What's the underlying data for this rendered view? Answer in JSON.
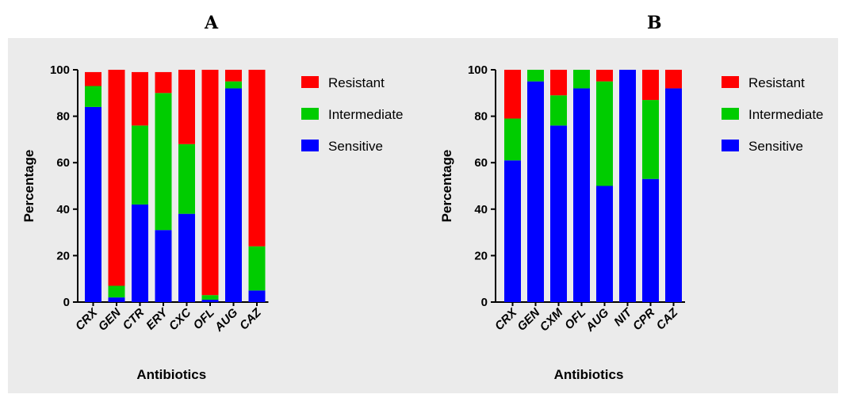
{
  "panel_labels": [
    "A",
    "B"
  ],
  "chart_data": [
    {
      "type": "bar",
      "stacked": true,
      "title": "A",
      "xlabel": "Antibiotics",
      "ylabel": "Percentage",
      "ylim": [
        0,
        100
      ],
      "yticks": [
        0,
        20,
        40,
        60,
        80,
        100
      ],
      "categories": [
        "CRX",
        "GEN",
        "CTR",
        "ERY",
        "CXC",
        "OFL",
        "AUG",
        "CAZ"
      ],
      "series": [
        {
          "name": "Sensitive",
          "color": "#0000ff",
          "values": [
            84,
            2,
            42,
            31,
            38,
            1,
            92,
            5
          ]
        },
        {
          "name": "Intermediate",
          "color": "#00cc00",
          "values": [
            9,
            5,
            34,
            59,
            30,
            2,
            3,
            19
          ]
        },
        {
          "name": "Resistant",
          "color": "#ff0000",
          "values": [
            6,
            93,
            23,
            9,
            32,
            97,
            5,
            76
          ]
        }
      ],
      "legend": [
        "Resistant",
        "Intermediate",
        "Sensitive"
      ],
      "legend_position": "right",
      "grid": false
    },
    {
      "type": "bar",
      "stacked": true,
      "title": "B",
      "xlabel": "Antibiotics",
      "ylabel": "Percentage",
      "ylim": [
        0,
        100
      ],
      "yticks": [
        0,
        20,
        40,
        60,
        80,
        100
      ],
      "categories": [
        "CRX",
        "GEN",
        "CXM",
        "OFL",
        "AUG",
        "NIT",
        "CPR",
        "CAZ"
      ],
      "series": [
        {
          "name": "Sensitive",
          "color": "#0000ff",
          "values": [
            61,
            95,
            76,
            92,
            50,
            100,
            53,
            92
          ]
        },
        {
          "name": "Intermediate",
          "color": "#00cc00",
          "values": [
            18,
            5,
            13,
            8,
            45,
            0,
            34,
            0
          ]
        },
        {
          "name": "Resistant",
          "color": "#ff0000",
          "values": [
            21,
            0,
            11,
            0,
            5,
            0,
            13,
            8
          ]
        }
      ],
      "legend": [
        "Resistant",
        "Intermediate",
        "Sensitive"
      ],
      "legend_position": "right",
      "grid": false
    }
  ]
}
